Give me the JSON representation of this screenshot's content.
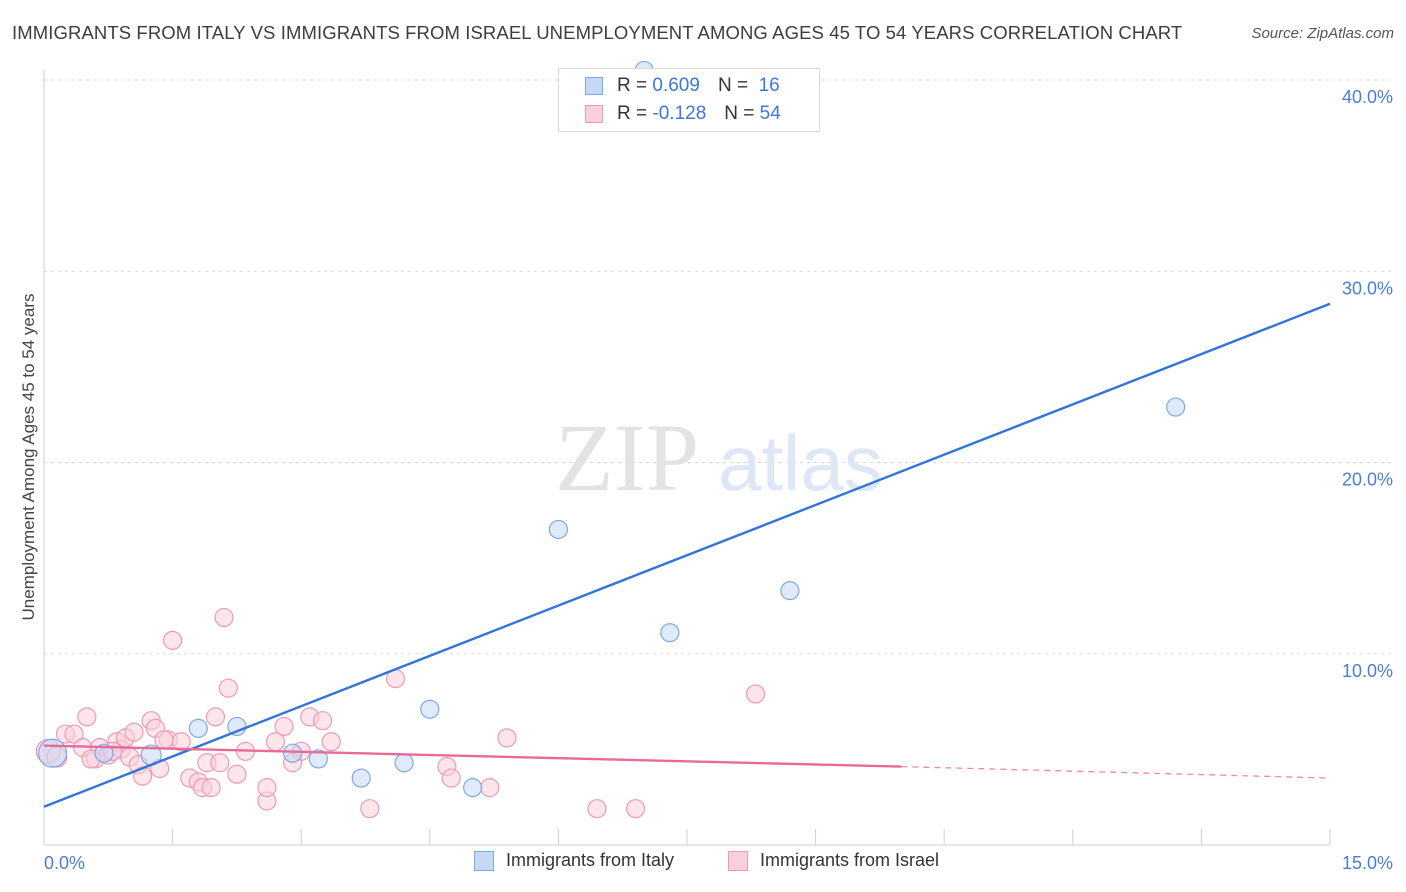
{
  "title": "IMMIGRANTS FROM ITALY VS IMMIGRANTS FROM ISRAEL UNEMPLOYMENT AMONG AGES 45 TO 54 YEARS CORRELATION CHART",
  "source": "Source: ZipAtlas.com",
  "watermark": {
    "zip": "ZIP",
    "atlas": "atlas"
  },
  "legend": {
    "italy": {
      "r_label": "R =",
      "r_value": "0.609",
      "n_label": "N =",
      "n_value": "16"
    },
    "israel": {
      "r_label": "R =",
      "r_value": "-0.128",
      "n_label": "N =",
      "n_value": "54"
    }
  },
  "colors": {
    "italy_fill": "#c5d9f5",
    "italy_stroke": "#7fa8e6",
    "italy_line": "#3274d9",
    "israel_fill": "#fbd0dd",
    "israel_stroke": "#ef9ab5",
    "israel_line": "#e8699a",
    "grid": "#d8d8d8",
    "tick_text": "#4a7fd0"
  },
  "chart_data": {
    "type": "scatter",
    "title": "IMMIGRANTS FROM ITALY VS IMMIGRANTS FROM ISRAEL UNEMPLOYMENT AMONG AGES 45 TO 54 YEARS CORRELATION CHART",
    "xlabel": "",
    "ylabel": "Unemployment Among Ages 45 to 54 years",
    "xlim": [
      0,
      15
    ],
    "ylim": [
      0,
      40
    ],
    "x_tick_labels": [
      {
        "value": 0,
        "label": "0.0%"
      },
      {
        "value": 15,
        "label": "15.0%"
      }
    ],
    "y_ticks": [
      10,
      20,
      30,
      40
    ],
    "y_tick_labels": [
      "10.0%",
      "20.0%",
      "30.0%",
      "40.0%"
    ],
    "x_minor_ticks": [
      1.5,
      3.0,
      4.5,
      6.0,
      7.5,
      9.0,
      10.5,
      12.0,
      13.5,
      15.0
    ],
    "grid": true,
    "series": [
      {
        "name": "Immigrants from Italy",
        "points": [
          [
            0.1,
            4.8,
            14
          ],
          [
            1.25,
            4.7,
            10
          ],
          [
            1.8,
            6.1,
            9
          ],
          [
            2.25,
            6.2,
            9
          ],
          [
            2.9,
            4.8,
            9
          ],
          [
            3.2,
            4.5,
            9
          ],
          [
            3.7,
            3.5,
            9
          ],
          [
            4.2,
            4.3,
            9
          ],
          [
            4.5,
            7.1,
            9
          ],
          [
            5.0,
            3.0,
            9
          ],
          [
            6.0,
            16.5,
            9
          ],
          [
            7.3,
            11.1,
            9
          ],
          [
            8.7,
            13.3,
            9
          ],
          [
            13.2,
            22.9,
            9
          ],
          [
            7.0,
            40.5,
            9
          ],
          [
            0.7,
            4.8,
            9
          ]
        ],
        "trend": {
          "x0": 0,
          "y0": 2.0,
          "x1": 15,
          "y1": 28.3
        }
      },
      {
        "name": "Immigrants from Israel",
        "points": [
          [
            0.05,
            4.9,
            12
          ],
          [
            0.15,
            4.6,
            10
          ],
          [
            0.25,
            5.8,
            9
          ],
          [
            0.35,
            5.8,
            9
          ],
          [
            0.45,
            5.1,
            9
          ],
          [
            0.5,
            6.7,
            9
          ],
          [
            0.6,
            4.5,
            9
          ],
          [
            0.65,
            5.1,
            9
          ],
          [
            0.75,
            4.7,
            9
          ],
          [
            0.85,
            5.4,
            9
          ],
          [
            0.9,
            5.0,
            9
          ],
          [
            0.95,
            5.6,
            9
          ],
          [
            1.0,
            4.6,
            9
          ],
          [
            1.05,
            5.9,
            9
          ],
          [
            1.1,
            4.2,
            9
          ],
          [
            1.15,
            3.6,
            9
          ],
          [
            1.25,
            6.5,
            9
          ],
          [
            1.3,
            6.1,
            9
          ],
          [
            1.35,
            4.0,
            9
          ],
          [
            1.45,
            5.5,
            9
          ],
          [
            1.5,
            10.7,
            9
          ],
          [
            1.6,
            5.4,
            9
          ],
          [
            1.7,
            3.5,
            9
          ],
          [
            1.8,
            3.3,
            9
          ],
          [
            1.85,
            3.0,
            9
          ],
          [
            1.9,
            4.3,
            9
          ],
          [
            2.0,
            6.7,
            9
          ],
          [
            2.05,
            4.3,
            9
          ],
          [
            2.1,
            11.9,
            9
          ],
          [
            2.15,
            8.2,
            9
          ],
          [
            2.25,
            3.7,
            9
          ],
          [
            2.35,
            4.9,
            9
          ],
          [
            2.6,
            2.3,
            9
          ],
          [
            2.6,
            3.0,
            9
          ],
          [
            2.7,
            5.4,
            9
          ],
          [
            2.8,
            6.2,
            9
          ],
          [
            3.0,
            4.9,
            9
          ],
          [
            3.1,
            6.7,
            9
          ],
          [
            3.25,
            6.5,
            9
          ],
          [
            3.35,
            5.4,
            9
          ],
          [
            3.8,
            1.9,
            9
          ],
          [
            4.1,
            8.7,
            9
          ],
          [
            4.7,
            4.1,
            9
          ],
          [
            4.75,
            3.5,
            9
          ],
          [
            5.2,
            3.0,
            9
          ],
          [
            5.4,
            5.6,
            9
          ],
          [
            6.45,
            1.9,
            9
          ],
          [
            6.9,
            1.9,
            9
          ],
          [
            8.3,
            7.9,
            9
          ],
          [
            0.55,
            4.5,
            9
          ],
          [
            1.95,
            3.0,
            9
          ],
          [
            1.4,
            5.5,
            9
          ],
          [
            0.8,
            4.9,
            9
          ],
          [
            2.9,
            4.3,
            9
          ]
        ],
        "trend": {
          "x0": 0,
          "y0": 5.2,
          "x1": 10.0,
          "y1": 4.1,
          "dash_x1": 15,
          "dash_y1": 3.5
        }
      }
    ]
  },
  "bottom_legend": {
    "italy": "Immigrants from Italy",
    "israel": "Immigrants from Israel"
  }
}
